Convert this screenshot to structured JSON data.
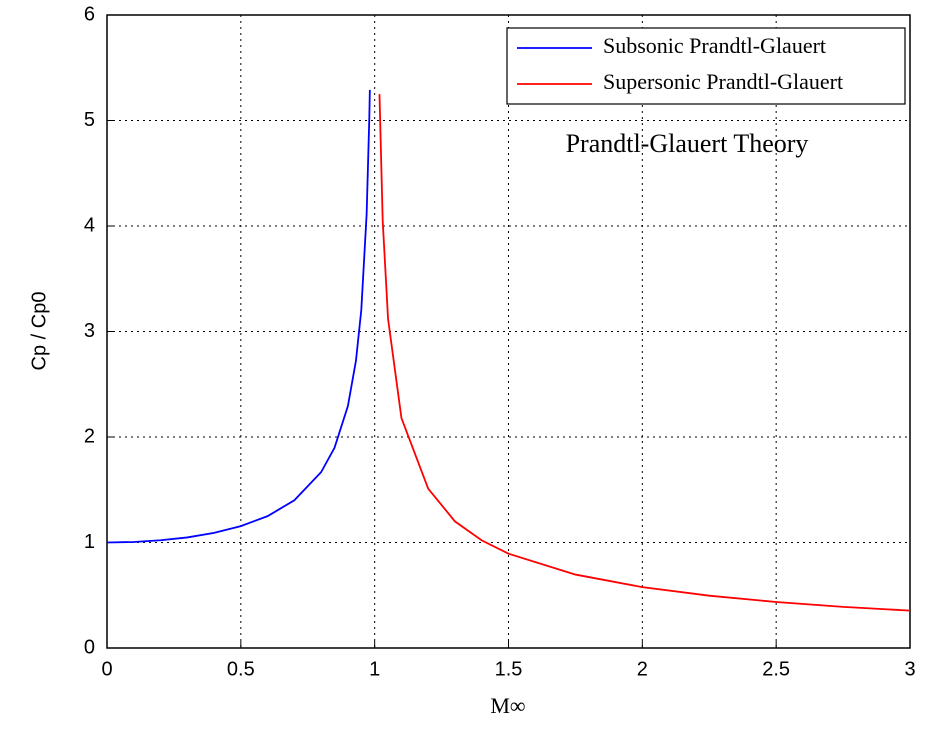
{
  "chart_data": {
    "type": "line",
    "annotation": "Prandtl-Glauert Theory",
    "xlabel": "M∞",
    "ylabel": "Cp / Cp0",
    "xlim": [
      0,
      3
    ],
    "xticks": [
      0,
      0.5,
      1,
      1.5,
      2,
      2.5,
      3
    ],
    "ylim": [
      0,
      6
    ],
    "yticks": [
      0,
      1,
      2,
      3,
      4,
      5,
      6
    ],
    "grid": true,
    "legend": "upper right",
    "series": [
      {
        "name": "Subsonic Prandtl-Glauert",
        "color": "#0000ff",
        "x": [
          0,
          0.1,
          0.2,
          0.3,
          0.4,
          0.5,
          0.6,
          0.7,
          0.8,
          0.85,
          0.9,
          0.93,
          0.95,
          0.97,
          0.98,
          0.982
        ],
        "values": [
          1,
          1.005,
          1.021,
          1.048,
          1.091,
          1.155,
          1.25,
          1.4,
          1.667,
          1.898,
          2.294,
          2.721,
          3.203,
          4.113,
          5.025,
          5.29
        ]
      },
      {
        "name": "Supersonic Prandtl-Glauert",
        "color": "#ff0000",
        "x": [
          1.018,
          1.03,
          1.05,
          1.1,
          1.2,
          1.3,
          1.4,
          1.5,
          1.75,
          2,
          2.25,
          2.5,
          2.75,
          3
        ],
        "values": [
          5.25,
          4.05,
          3.12,
          2.18,
          1.51,
          1.2,
          1.02,
          0.894,
          0.696,
          0.577,
          0.496,
          0.436,
          0.39,
          0.354
        ]
      }
    ]
  }
}
